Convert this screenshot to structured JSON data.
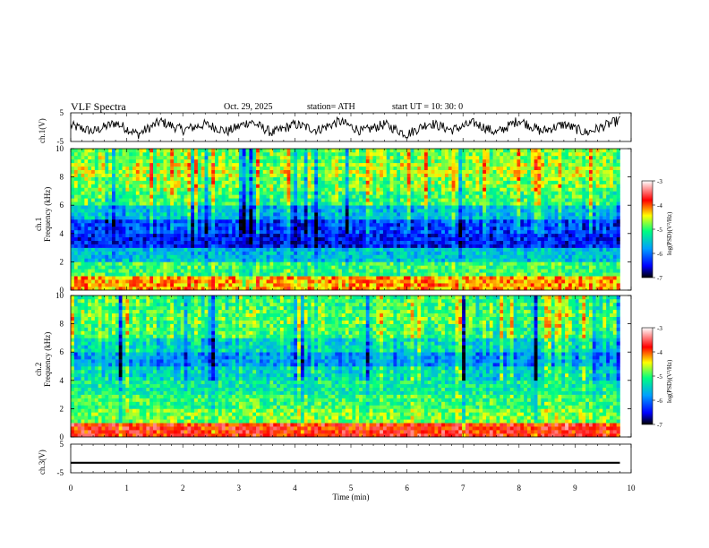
{
  "header": {
    "title": "VLF  Spectra",
    "date": "Oct. 29, 2025",
    "station": "station= ATH",
    "start_ut": "start  UT  =    10: 30: 0"
  },
  "colors": {
    "waveform": "#000000",
    "colormap": [
      "#000000",
      "#0000ff",
      "#00a0ff",
      "#00ff80",
      "#ffff00",
      "#ff0000",
      "#ffffff"
    ]
  },
  "chart_data": [
    {
      "type": "line",
      "ylabel": "ch.1(V)",
      "ylim": [
        -5,
        5
      ],
      "yticks": [
        "5",
        "-5"
      ],
      "description_values": {
        "x_range_min": [
          0,
          9.8
        ],
        "samples_min": [
          0.0,
          0.4,
          0.8,
          1.2,
          1.6,
          2.0,
          2.4,
          2.8,
          3.2,
          3.6,
          4.0,
          4.4,
          4.8,
          5.2,
          5.6,
          6.0,
          6.4,
          6.8,
          7.2,
          7.6,
          8.0,
          8.4,
          8.8,
          9.2,
          9.6
        ],
        "samples_v": [
          0.5,
          -1.5,
          1.5,
          -2.5,
          2.0,
          -1.0,
          1.0,
          -1.5,
          2.0,
          -2.0,
          1.0,
          -1.0,
          2.0,
          -1.5,
          1.0,
          -2.5,
          1.5,
          -1.0,
          1.5,
          -2.0,
          2.5,
          -1.5,
          1.0,
          -2.0,
          1.0
        ]
      }
    },
    {
      "type": "heatmap",
      "channel": "ch.1",
      "ylabel": "ch.1\nFrequency (kHz)",
      "ylim": [
        0,
        10
      ],
      "yticks": [
        "0",
        "2",
        "4",
        "6",
        "8",
        "10"
      ],
      "xlim": [
        0,
        10
      ],
      "colorbar": {
        "label": "log(PSD)(V²/Hz)",
        "range": [
          -7,
          -3
        ],
        "ticks": [
          "-3",
          "-4",
          "-5",
          "-6",
          "-7"
        ]
      },
      "level_profile_khz": [
        0.5,
        1.5,
        2.5,
        3.5,
        4.5,
        5.5,
        6.5,
        7.5,
        8.5,
        9.5
      ],
      "level_profile_logpsd": [
        -4.2,
        -5.0,
        -5.6,
        -6.4,
        -6.2,
        -5.6,
        -5.0,
        -4.8,
        -4.6,
        -4.8
      ]
    },
    {
      "type": "heatmap",
      "channel": "ch.2",
      "ylabel": "ch.2\nFrequency (kHz)",
      "ylim": [
        0,
        10
      ],
      "yticks": [
        "0",
        "2",
        "4",
        "6",
        "8",
        "10"
      ],
      "xlim": [
        0,
        10
      ],
      "colorbar": {
        "label": "log(PSD)(V²/Hz)",
        "range": [
          -7,
          -3
        ],
        "ticks": [
          "-3",
          "-4",
          "-5",
          "-6",
          "-7"
        ]
      },
      "level_profile_khz": [
        0.5,
        1.5,
        2.5,
        3.5,
        4.5,
        5.5,
        6.5,
        7.5,
        8.5,
        9.5
      ],
      "level_profile_logpsd": [
        -3.8,
        -4.8,
        -5.0,
        -5.2,
        -5.4,
        -5.8,
        -5.4,
        -5.0,
        -4.9,
        -5.0
      ]
    },
    {
      "type": "line",
      "ylabel": "ch.3(V)",
      "ylim": [
        -5,
        5
      ],
      "yticks": [
        "5",
        "-5"
      ],
      "flat_value_v": -1.5,
      "xlabel": "Time  (min)",
      "xticks": [
        "0",
        "1",
        "2",
        "3",
        "4",
        "5",
        "6",
        "7",
        "8",
        "9",
        "10"
      ],
      "xlim": [
        0,
        10
      ]
    }
  ]
}
